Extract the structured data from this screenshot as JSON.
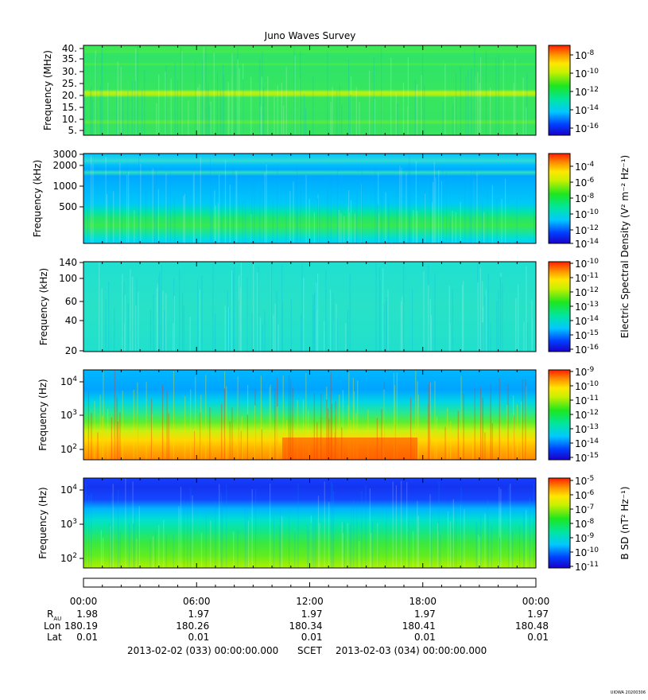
{
  "chart_data": {
    "type": "heatmap",
    "title": "Juno Waves Survey",
    "panels": [
      {
        "ylabel": "Frequency (MHz)",
        "ytick_labels": [
          "40.",
          "35.",
          "30.",
          "25.",
          "20.",
          "15.",
          "10.",
          "5."
        ],
        "scale": "linear",
        "ylim": [
          3.5,
          41.5
        ],
        "colorbar": {
          "label": "",
          "tick_labels": [
            {
              "base": "10",
              "exp": "-8"
            },
            {
              "base": "10",
              "exp": "-10"
            },
            {
              "base": "10",
              "exp": "-12"
            },
            {
              "base": "10",
              "exp": "-14"
            },
            {
              "base": "10",
              "exp": "-16"
            }
          ]
        }
      },
      {
        "ylabel": "Frequency (kHz)",
        "ytick_labels": [
          "3000",
          "2000",
          "1000",
          "500"
        ],
        "scale": "log",
        "ylim": [
          140,
          3000
        ],
        "colorbar": {
          "label": "Electric Spectral Density (V² m⁻² Hz⁻¹)",
          "tick_labels": [
            {
              "base": "10",
              "exp": "-4"
            },
            {
              "base": "10",
              "exp": "-6"
            },
            {
              "base": "10",
              "exp": "-8"
            },
            {
              "base": "10",
              "exp": "-10"
            },
            {
              "base": "10",
              "exp": "-12"
            },
            {
              "base": "10",
              "exp": "-14"
            }
          ]
        }
      },
      {
        "ylabel": "Frequency (kHz)",
        "ytick_labels": [
          "140",
          "100",
          "60",
          "40",
          "20"
        ],
        "scale": "log",
        "ylim": [
          20,
          140
        ],
        "colorbar": {
          "label": "",
          "tick_labels": [
            {
              "base": "10",
              "exp": "-10"
            },
            {
              "base": "10",
              "exp": "-11"
            },
            {
              "base": "10",
              "exp": "-12"
            },
            {
              "base": "10",
              "exp": "-13"
            },
            {
              "base": "10",
              "exp": "-14"
            },
            {
              "base": "10",
              "exp": "-15"
            },
            {
              "base": "10",
              "exp": "-16"
            }
          ]
        }
      },
      {
        "ylabel": "Frequency (Hz)",
        "ytick_labels": [
          {
            "base": "10",
            "exp": "4"
          },
          {
            "base": "10",
            "exp": "3"
          },
          {
            "base": "10",
            "exp": "2"
          }
        ],
        "scale": "log",
        "ylim": [
          50,
          20000
        ],
        "colorbar": {
          "label": "",
          "tick_labels": [
            {
              "base": "10",
              "exp": "-9"
            },
            {
              "base": "10",
              "exp": "-10"
            },
            {
              "base": "10",
              "exp": "-11"
            },
            {
              "base": "10",
              "exp": "-12"
            },
            {
              "base": "10",
              "exp": "-13"
            },
            {
              "base": "10",
              "exp": "-14"
            },
            {
              "base": "10",
              "exp": "-15"
            }
          ]
        }
      },
      {
        "ylabel": "Frequency (Hz)",
        "ytick_labels": [
          {
            "base": "10",
            "exp": "4"
          },
          {
            "base": "10",
            "exp": "3"
          },
          {
            "base": "10",
            "exp": "2"
          }
        ],
        "scale": "log",
        "ylim": [
          50,
          20000
        ],
        "colorbar": {
          "label": "B SD (nT² Hz⁻¹)",
          "tick_labels": [
            {
              "base": "10",
              "exp": "-5"
            },
            {
              "base": "10",
              "exp": "-6"
            },
            {
              "base": "10",
              "exp": "-7"
            },
            {
              "base": "10",
              "exp": "-8"
            },
            {
              "base": "10",
              "exp": "-9"
            },
            {
              "base": "10",
              "exp": "-10"
            },
            {
              "base": "10",
              "exp": "-11"
            }
          ]
        }
      }
    ],
    "x_axis": {
      "tick_labels": [
        "00:00",
        "06:00",
        "12:00",
        "18:00",
        "00:00"
      ],
      "row_labels": {
        "rau": "R",
        "rau_sub": "AU",
        "lon": "Lon",
        "lat": "Lat"
      },
      "rau": [
        "1.98",
        "1.97",
        "1.97",
        "1.97",
        "1.97"
      ],
      "lon": [
        "180.19",
        "180.26",
        "180.34",
        "180.41",
        "180.48"
      ],
      "lat": [
        "0.01",
        "0.01",
        "0.01",
        "0.01",
        "0.01"
      ],
      "start": "2013-02-02 (033) 00:00:00.000",
      "scet": "SCET",
      "end": "2013-02-03 (034) 00:00:00.000"
    },
    "credit": "UIOWA 20200306"
  }
}
